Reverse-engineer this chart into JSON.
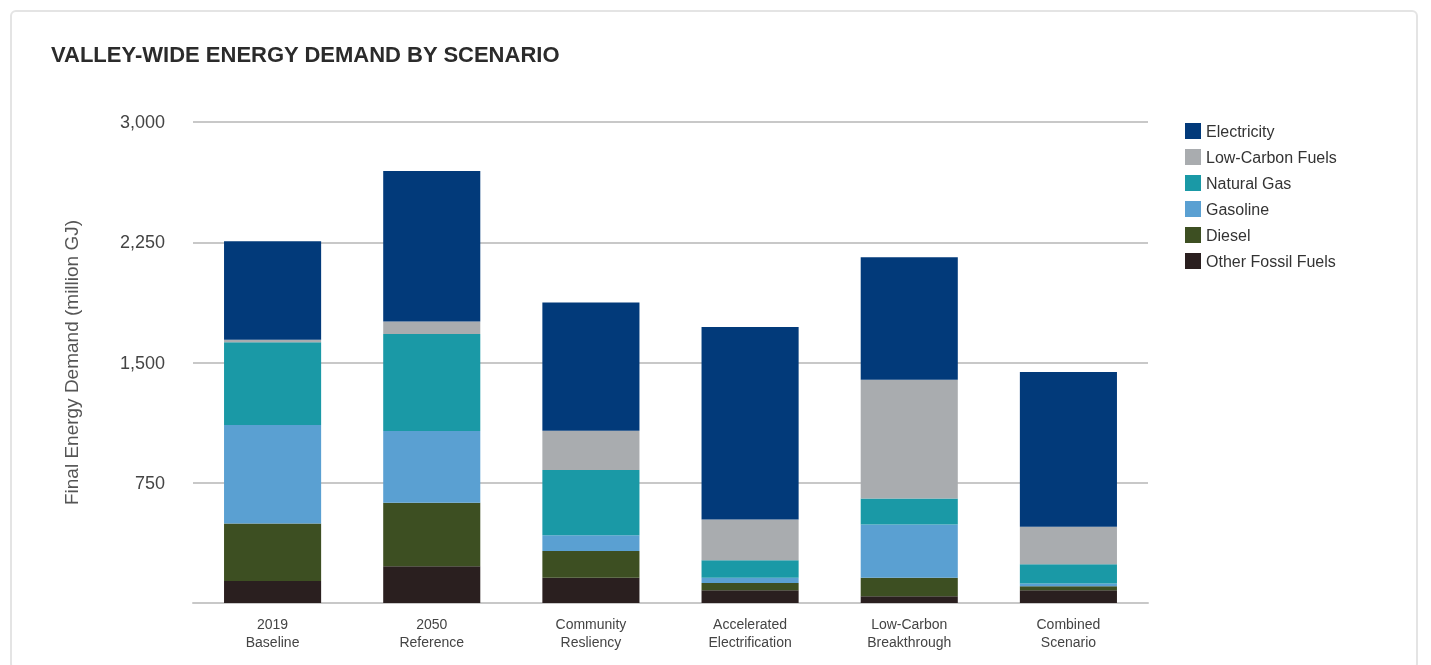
{
  "chart_data": {
    "type": "bar",
    "title": "VALLEY-WIDE ENERGY DEMAND BY SCENARIO",
    "ylabel": "Final Energy Demand (million GJ)",
    "categories": [
      "2019 Baseline",
      "2050 Reference",
      "Community Resliency",
      "Accelerated Electrification",
      "Low-Carbon Breakthrough",
      "Combined Scenario"
    ],
    "stacked": true,
    "series": [
      {
        "name": "Other Fossil Fuels",
        "color": "#2a1f1f",
        "values": [
          137,
          229,
          158,
          79,
          42,
          79
        ]
      },
      {
        "name": "Diesel",
        "color": "#3d4f22",
        "values": [
          359,
          396,
          167,
          46,
          116,
          25
        ]
      },
      {
        "name": "Gasoline",
        "color": "#5aa0d2",
        "values": [
          614,
          448,
          98,
          33,
          332,
          17
        ]
      },
      {
        "name": "Natural Gas",
        "color": "#1a99a6",
        "values": [
          517,
          604,
          406,
          109,
          162,
          121
        ]
      },
      {
        "name": "Low-Carbon Fuels",
        "color": "#a9acaf",
        "values": [
          15,
          79,
          246,
          254,
          740,
          233
        ]
      },
      {
        "name": "Electricity",
        "color": "#023a7a",
        "values": [
          614,
          938,
          800,
          1200,
          764,
          965
        ]
      }
    ],
    "ylim": [
      0,
      3000
    ],
    "yticks": [
      {
        "value": 0,
        "label": null
      },
      {
        "value": 750,
        "label": "750"
      },
      {
        "value": 1500,
        "label": "1,500"
      },
      {
        "value": 2250,
        "label": "2,250"
      },
      {
        "value": 3000,
        "label": "3,000"
      }
    ],
    "grid": "y",
    "legend": "top right"
  }
}
